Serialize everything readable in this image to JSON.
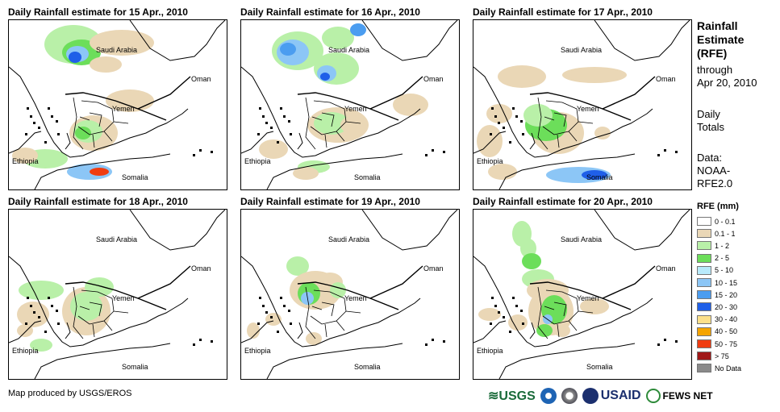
{
  "panels": [
    {
      "title": "Daily Rainfall estimate for 15 Apr., 2010"
    },
    {
      "title": "Daily Rainfall estimate for 16 Apr., 2010"
    },
    {
      "title": "Daily Rainfall estimate for 17 Apr., 2010"
    },
    {
      "title": "Daily Rainfall estimate for 18 Apr., 2010"
    },
    {
      "title": "Daily Rainfall estimate for 19 Apr., 2010"
    },
    {
      "title": "Daily Rainfall estimate for 20 Apr., 2010"
    }
  ],
  "places": {
    "saudi": "Saudi Arabia",
    "oman": "Oman",
    "yemen": "Yemen",
    "ethiopia": "Ethiopia",
    "somalia": "Somalia"
  },
  "legend": {
    "title_lines": [
      "Rainfall",
      "Estimate",
      "(RFE)"
    ],
    "through_lines": [
      "through",
      "Apr 20, 2010"
    ],
    "daily_lines": [
      "Daily",
      "Totals"
    ],
    "data_lines": [
      "Data:",
      "NOAA-",
      "RFE2.0"
    ],
    "header": "RFE (mm)",
    "classes": [
      {
        "label": "0 - 0.1",
        "color": "#ffffff"
      },
      {
        "label": "0.1 - 1",
        "color": "#ead7b6"
      },
      {
        "label": "1 - 2",
        "color": "#b9f0a8"
      },
      {
        "label": "2 - 5",
        "color": "#6cde5a"
      },
      {
        "label": "5 - 10",
        "color": "#b8eafb"
      },
      {
        "label": "10 - 15",
        "color": "#8cc6f6"
      },
      {
        "label": "15 - 20",
        "color": "#4b9df0"
      },
      {
        "label": "20 - 30",
        "color": "#1f5fe8"
      },
      {
        "label": "30 - 40",
        "color": "#fde08a"
      },
      {
        "label": "40 - 50",
        "color": "#f5a400"
      },
      {
        "label": "50 - 75",
        "color": "#f03c10"
      },
      {
        "label": "> 75",
        "color": "#a01818"
      },
      {
        "label": "No Data",
        "color": "#8a8a8a"
      }
    ]
  },
  "footer": "Map produced by USGS/EROS",
  "logos": {
    "usgs": "USGS",
    "usaid": "USAID",
    "fews": "FEWS NET"
  },
  "colors": {
    "usgs_green": "#1a6b3a",
    "usaid_blue": "#1b2f6e",
    "usaid_red": "#c8102e",
    "noaa_blue": "#1e64b4"
  }
}
